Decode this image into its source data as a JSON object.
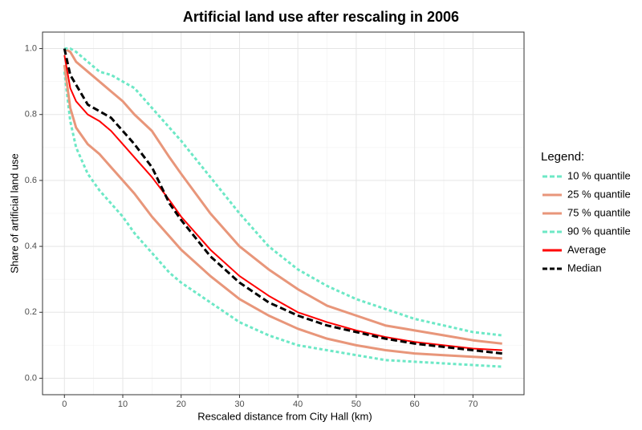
{
  "chart_data": {
    "type": "line",
    "title": "Artificial land use after rescaling in 2006",
    "x_label": "Rescaled distance from City Hall (km)",
    "y_label": "Share of artificial land use",
    "legend_title": "Legend:",
    "legend_position": "right",
    "grid": true,
    "x": [
      0,
      1,
      2,
      4,
      6,
      8,
      10,
      12,
      15,
      18,
      20,
      25,
      30,
      35,
      40,
      45,
      50,
      55,
      60,
      65,
      70,
      75
    ],
    "xlim": [
      -3.75,
      78.75
    ],
    "xticks": [
      0,
      10,
      20,
      30,
      40,
      50,
      60,
      70
    ],
    "ylim": [
      -0.05,
      1.05
    ],
    "yticks": [
      {
        "value": 0,
        "label": "0.0"
      },
      0.2,
      0.4,
      0.6,
      0.8,
      {
        "value": 1,
        "label": "1.0"
      }
    ],
    "series": [
      {
        "name": "10 % quantile",
        "color": "#6de8c6",
        "dashed": true,
        "values": [
          0.93,
          0.78,
          0.7,
          0.62,
          0.57,
          0.53,
          0.49,
          0.44,
          0.38,
          0.32,
          0.29,
          0.23,
          0.17,
          0.13,
          0.1,
          0.085,
          0.07,
          0.055,
          0.05,
          0.045,
          0.04,
          0.035
        ]
      },
      {
        "name": "25 % quantile",
        "color": "#e8967a",
        "dashed": false,
        "values": [
          0.95,
          0.82,
          0.76,
          0.71,
          0.68,
          0.64,
          0.6,
          0.56,
          0.49,
          0.43,
          0.39,
          0.31,
          0.24,
          0.19,
          0.15,
          0.12,
          0.1,
          0.085,
          0.075,
          0.07,
          0.065,
          0.06
        ]
      },
      {
        "name": "75 % quantile",
        "color": "#e8967a",
        "dashed": false,
        "values": [
          1.0,
          0.99,
          0.96,
          0.93,
          0.9,
          0.87,
          0.84,
          0.8,
          0.75,
          0.67,
          0.62,
          0.5,
          0.4,
          0.33,
          0.27,
          0.22,
          0.19,
          0.16,
          0.145,
          0.13,
          0.115,
          0.105
        ]
      },
      {
        "name": "90 % quantile",
        "color": "#6de8c6",
        "dashed": true,
        "values": [
          1.0,
          1.0,
          0.99,
          0.96,
          0.93,
          0.92,
          0.9,
          0.88,
          0.82,
          0.76,
          0.72,
          0.61,
          0.5,
          0.4,
          0.33,
          0.28,
          0.24,
          0.21,
          0.18,
          0.16,
          0.14,
          0.13
        ]
      },
      {
        "name": "Average",
        "color": "#ff0000",
        "dashed": false,
        "values": [
          0.98,
          0.88,
          0.84,
          0.8,
          0.78,
          0.75,
          0.71,
          0.67,
          0.61,
          0.54,
          0.49,
          0.39,
          0.31,
          0.25,
          0.2,
          0.17,
          0.145,
          0.125,
          0.11,
          0.1,
          0.09,
          0.085
        ]
      },
      {
        "name": "Median",
        "color": "#000000",
        "dashed": true,
        "values": [
          1.0,
          0.92,
          0.89,
          0.83,
          0.81,
          0.79,
          0.75,
          0.71,
          0.64,
          0.53,
          0.48,
          0.37,
          0.29,
          0.23,
          0.19,
          0.16,
          0.14,
          0.12,
          0.105,
          0.095,
          0.085,
          0.075
        ]
      }
    ]
  }
}
